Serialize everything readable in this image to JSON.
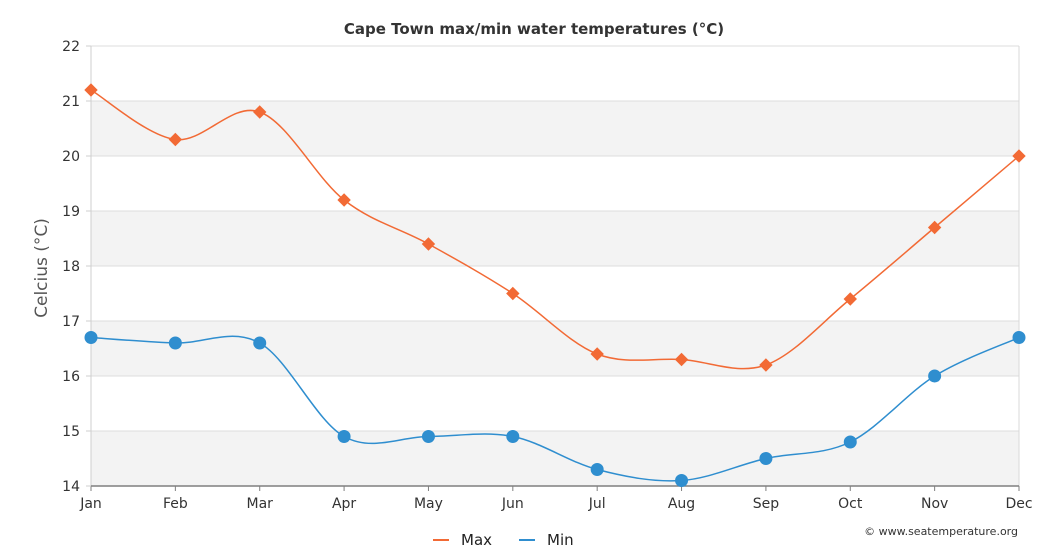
{
  "chart_data": {
    "type": "line",
    "title": "Cape Town max/min water temperatures (°C)",
    "xlabel": "",
    "ylabel": "Celcius (°C)",
    "categories": [
      "Jan",
      "Feb",
      "Mar",
      "Apr",
      "May",
      "Jun",
      "Jul",
      "Aug",
      "Sep",
      "Oct",
      "Nov",
      "Dec"
    ],
    "yticks": [
      "14",
      "15",
      "16",
      "17",
      "18",
      "19",
      "20",
      "21",
      "22"
    ],
    "ylim": [
      14,
      22
    ],
    "grid": "horizontal bands",
    "legend_position": "bottom-center",
    "series": [
      {
        "name": "Max",
        "color": "#f26a35",
        "marker": "diamond",
        "values": [
          21.2,
          20.3,
          20.8,
          19.2,
          18.4,
          17.5,
          16.4,
          16.3,
          16.2,
          17.4,
          18.7,
          20.0
        ]
      },
      {
        "name": "Min",
        "color": "#2f8ecf",
        "marker": "circle",
        "values": [
          16.7,
          16.6,
          16.6,
          14.9,
          14.9,
          14.9,
          14.3,
          14.1,
          14.5,
          14.8,
          16.0,
          16.7
        ]
      }
    ],
    "credit": "© www.seatemperature.org"
  }
}
